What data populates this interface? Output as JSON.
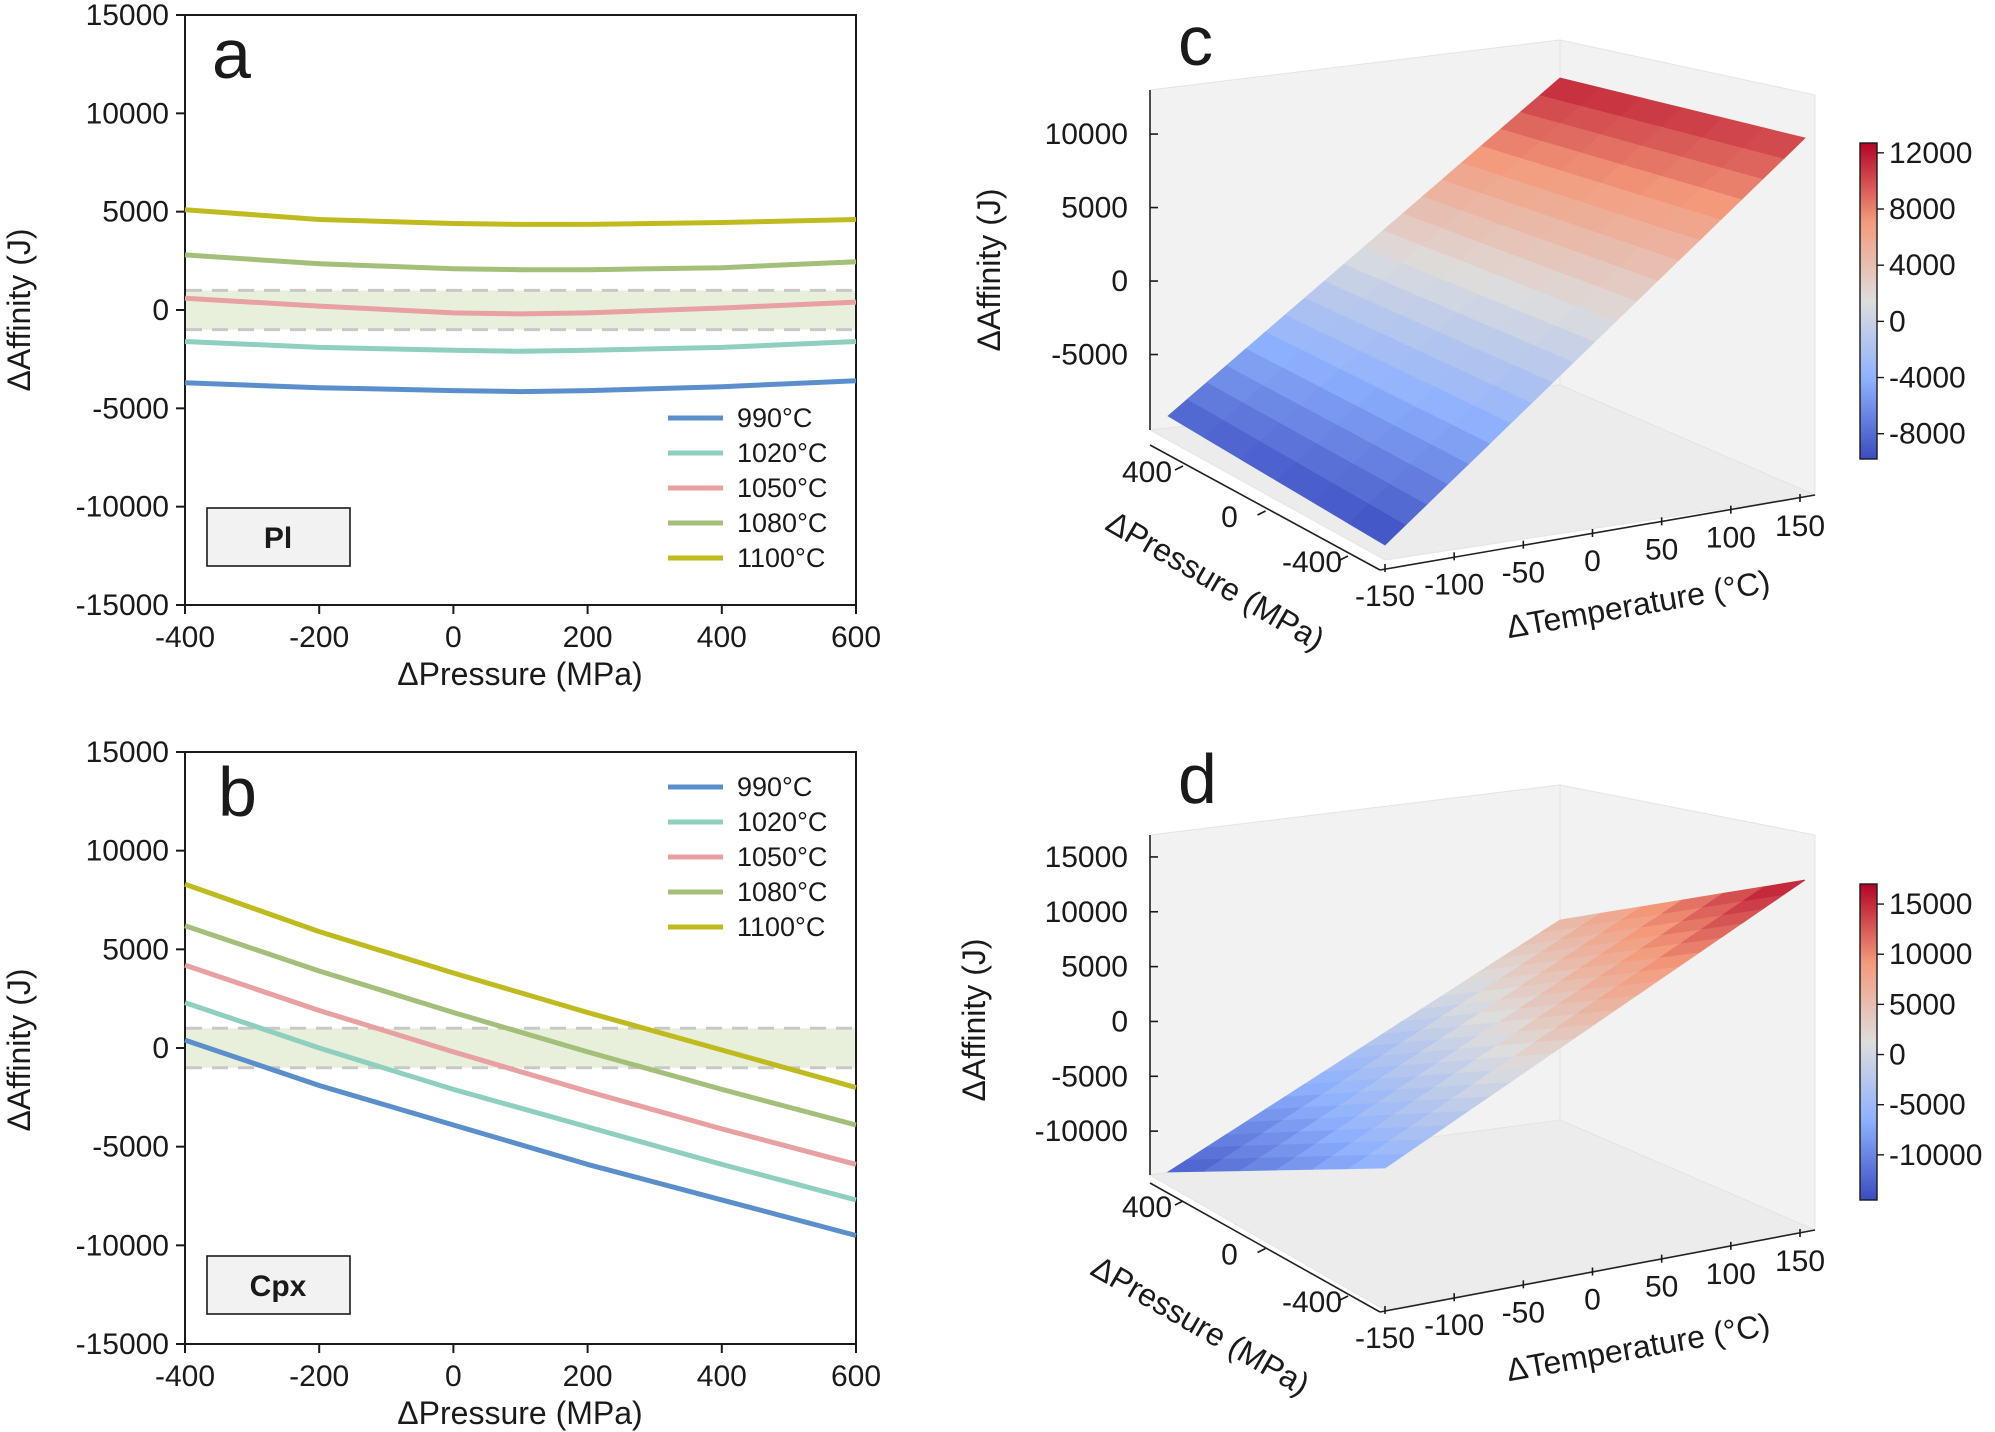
{
  "colors": {
    "c990": "#5b8fcc",
    "c1020": "#8fcfbf",
    "c1050": "#e8a0a2",
    "c1080": "#a3bf7a",
    "c1100": "#bfbb1f",
    "band": "#e8f0dc",
    "band_line": "#c8c8c8",
    "cmap_low": "#3b4cc0",
    "cmap_mid": "#dddddd",
    "cmap_high": "#b40426"
  },
  "chart_data": [
    {
      "id": "a",
      "type": "line",
      "panel_label": "a",
      "mineral_label": "Pl",
      "xlabel": "ΔPressure (MPa)",
      "ylabel": "ΔAffinity (J)",
      "xlim": [
        -400,
        600
      ],
      "ylim": [
        -15000,
        15000
      ],
      "xticks": [
        -400,
        -200,
        0,
        200,
        400,
        600
      ],
      "yticks": [
        15000,
        10000,
        5000,
        0,
        -5000,
        -10000,
        -15000
      ],
      "band": [
        -1000,
        1000
      ],
      "legend_position": "lower-right",
      "series": [
        {
          "name": "990°C",
          "color_key": "c990",
          "x": [
            -400,
            -200,
            0,
            100,
            200,
            400,
            600
          ],
          "values": [
            -3700,
            -3950,
            -4100,
            -4150,
            -4100,
            -3900,
            -3600
          ]
        },
        {
          "name": "1020°C",
          "color_key": "c1020",
          "x": [
            -400,
            -200,
            0,
            100,
            200,
            400,
            600
          ],
          "values": [
            -1600,
            -1900,
            -2050,
            -2100,
            -2050,
            -1900,
            -1600
          ]
        },
        {
          "name": "1050°C",
          "color_key": "c1050",
          "x": [
            -400,
            -200,
            0,
            100,
            200,
            400,
            600
          ],
          "values": [
            600,
            200,
            -150,
            -200,
            -150,
            100,
            400
          ]
        },
        {
          "name": "1080°C",
          "color_key": "c1080",
          "x": [
            -400,
            -200,
            0,
            100,
            200,
            400,
            600
          ],
          "values": [
            2800,
            2350,
            2100,
            2050,
            2050,
            2150,
            2450
          ]
        },
        {
          "name": "1100°C",
          "color_key": "c1100",
          "x": [
            -400,
            -200,
            0,
            100,
            200,
            400,
            600
          ],
          "values": [
            5100,
            4600,
            4400,
            4350,
            4350,
            4450,
            4600
          ]
        }
      ]
    },
    {
      "id": "b",
      "type": "line",
      "panel_label": "b",
      "mineral_label": "Cpx",
      "xlabel": "ΔPressure (MPa)",
      "ylabel": "ΔAffinity (J)",
      "xlim": [
        -400,
        600
      ],
      "ylim": [
        -15000,
        15000
      ],
      "xticks": [
        -400,
        -200,
        0,
        200,
        400,
        600
      ],
      "yticks": [
        15000,
        10000,
        5000,
        0,
        -5000,
        -10000,
        -15000
      ],
      "band": [
        -1000,
        1000
      ],
      "legend_position": "upper-right",
      "series": [
        {
          "name": "990°C",
          "color_key": "c990",
          "x": [
            -400,
            -200,
            0,
            200,
            400,
            600
          ],
          "values": [
            400,
            -1900,
            -3900,
            -5900,
            -7700,
            -9500
          ]
        },
        {
          "name": "1020°C",
          "color_key": "c1020",
          "x": [
            -400,
            -200,
            0,
            200,
            400,
            600
          ],
          "values": [
            2300,
            0,
            -2100,
            -4000,
            -5900,
            -7700
          ]
        },
        {
          "name": "1050°C",
          "color_key": "c1050",
          "x": [
            -400,
            -200,
            0,
            200,
            400,
            600
          ],
          "values": [
            4200,
            1900,
            -200,
            -2200,
            -4100,
            -5900
          ]
        },
        {
          "name": "1080°C",
          "color_key": "c1080",
          "x": [
            -400,
            -200,
            0,
            200,
            400,
            600
          ],
          "values": [
            6200,
            3900,
            1800,
            -200,
            -2100,
            -3900
          ]
        },
        {
          "name": "1100°C",
          "color_key": "c1100",
          "x": [
            -400,
            -200,
            0,
            200,
            400,
            600
          ],
          "values": [
            8300,
            5900,
            3800,
            1800,
            -100,
            -2000
          ]
        }
      ]
    },
    {
      "id": "c",
      "type": "surface",
      "panel_label": "c",
      "xlabel": "ΔTemperature (°C)",
      "ylabel": "ΔPressure (MPa)",
      "zlabel": "ΔAffinity (J)",
      "xticks": [
        -150,
        -100,
        -50,
        0,
        50,
        100,
        150
      ],
      "yticks": [
        400,
        0,
        -400
      ],
      "zticks": [
        10000,
        5000,
        0,
        -5000
      ],
      "zlim": [
        -10000,
        13000
      ],
      "corner_values": {
        "Tmin_Pmax": -8600,
        "Tmin_Pmin": -9700,
        "Tmax_Pmax": 11600,
        "Tmax_Pmin": 10500
      },
      "colorbar_ticks": [
        12000,
        8000,
        4000,
        0,
        -4000,
        -8000
      ],
      "colorbar_range": [
        -9800,
        12700
      ]
    },
    {
      "id": "d",
      "type": "surface",
      "panel_label": "d",
      "xlabel": "ΔTemperature (°C)",
      "ylabel": "ΔPressure (MPa)",
      "zlabel": "ΔAffinity (J)",
      "xticks": [
        -150,
        -100,
        -50,
        0,
        50,
        100,
        150
      ],
      "yticks": [
        400,
        0,
        -400
      ],
      "zticks": [
        15000,
        10000,
        5000,
        0,
        -5000,
        -10000
      ],
      "zlim": [
        -14000,
        17000
      ],
      "corner_values": {
        "Tmin_Pmax": -13500,
        "Tmin_Pmin": -6000,
        "Tmax_Pmax": 5000,
        "Tmax_Pmin": 16500
      },
      "colorbar_ticks": [
        15000,
        10000,
        5000,
        0,
        -5000,
        -10000
      ],
      "colorbar_range": [
        -14500,
        17000
      ]
    }
  ]
}
